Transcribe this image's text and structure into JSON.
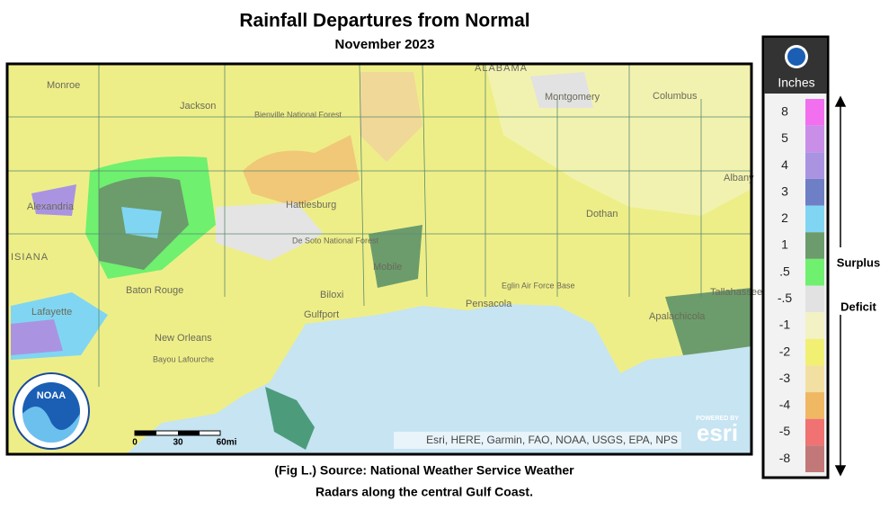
{
  "header": {
    "title": "Rainfall Departures from Normal",
    "subtitle": "November 2023"
  },
  "map": {
    "places": [
      "Monroe",
      "Jackson",
      "Bienville National Forest",
      "Hattiesburg",
      "De Soto National Forest",
      "Alexandria",
      "Baton Rouge",
      "Lafayette",
      "New Orleans",
      "Biloxi",
      "Gulfport",
      "Mobile",
      "Pensacola",
      "Eglin Air Force Base",
      "Montgomery",
      "Columbus",
      "Albany",
      "Dothan",
      "Tallahassee",
      "Apalachicola",
      "ALABAMA",
      "ISIANA",
      "Bayou Lafourche"
    ],
    "scale": [
      "0",
      "30",
      "60mi"
    ],
    "attribution": "Esri, HERE, Garmin, FAO, NOAA, USGS, EPA, NPS",
    "esri_powered": "POWERED BY",
    "esri": "esri",
    "logo": "NOAA"
  },
  "legend": {
    "unit": "Inches",
    "entries": [
      {
        "label": "8",
        "color": "#f270f0"
      },
      {
        "label": "5",
        "color": "#c88ee8"
      },
      {
        "label": "4",
        "color": "#aa94e2"
      },
      {
        "label": "3",
        "color": "#6f7fc6"
      },
      {
        "label": "2",
        "color": "#80d6f2"
      },
      {
        "label": "1",
        "color": "#6c9c6c"
      },
      {
        "label": ".5",
        "color": "#6ff06f"
      },
      {
        "label": "-.5",
        "color": "#e2e2e2"
      },
      {
        "label": "-1",
        "color": "#f2f2c4"
      },
      {
        "label": "-2",
        "color": "#f2f072"
      },
      {
        "label": "-3",
        "color": "#f2e0a2"
      },
      {
        "label": "-4",
        "color": "#f0b862"
      },
      {
        "label": "-5",
        "color": "#f07272"
      },
      {
        "label": "-8",
        "color": "#c27878"
      }
    ],
    "surplus": "Surplus",
    "deficit": "Deficit"
  },
  "caption": [
    "(Fig L.) Source: National Weather Service Weather",
    "Radars along the central Gulf Coast."
  ]
}
